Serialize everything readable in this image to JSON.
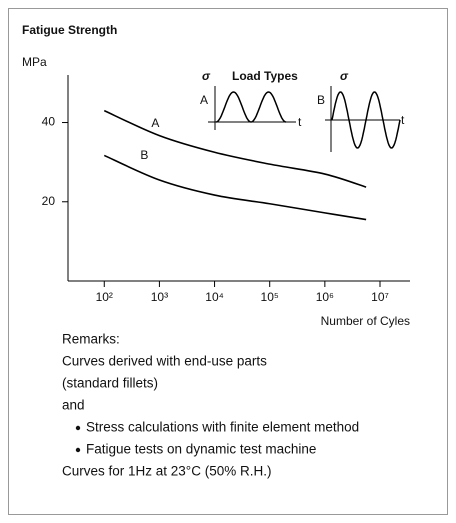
{
  "chart_data": {
    "type": "line",
    "title": "Fatigue Strength",
    "ylabel": "MPa",
    "xlabel": "Number of Cyles",
    "xscale": "log",
    "xlim": [
      22,
      35000000
    ],
    "xticks": [
      {
        "value": 100,
        "label": "10²"
      },
      {
        "value": 1000,
        "label": "10³"
      },
      {
        "value": 10000,
        "label": "10⁴"
      },
      {
        "value": 100000,
        "label": "10⁵"
      },
      {
        "value": 1000000,
        "label": "10⁶"
      },
      {
        "value": 10000000,
        "label": "10⁷"
      }
    ],
    "ylim": [
      0,
      52
    ],
    "yticks": [
      20,
      40
    ],
    "grid": false,
    "series": [
      {
        "name": "A",
        "color": "#000000",
        "x": [
          100,
          1000,
          10000,
          100000,
          1000000,
          5600000
        ],
        "values": [
          43,
          36.7,
          32.5,
          29.5,
          27,
          23.7
        ]
      },
      {
        "name": "B",
        "color": "#000000",
        "x": [
          100,
          1000,
          10000,
          100000,
          1000000,
          5600000
        ],
        "values": [
          31.7,
          25.5,
          21.7,
          19.5,
          17.2,
          15.5
        ]
      }
    ],
    "annotations": [
      "Load Types",
      "σ",
      "A",
      "t",
      "σ",
      "B",
      "t"
    ]
  },
  "remarks": {
    "heading": "Remarks:",
    "lines": [
      "Curves derived with end-use parts",
      "(standard fillets)",
      "and"
    ],
    "bullets": [
      "Stress calculations with finite element method",
      "Fatigue tests on dynamic test machine"
    ],
    "footer": "Curves for 1Hz at 23°C (50% R.H.)"
  }
}
